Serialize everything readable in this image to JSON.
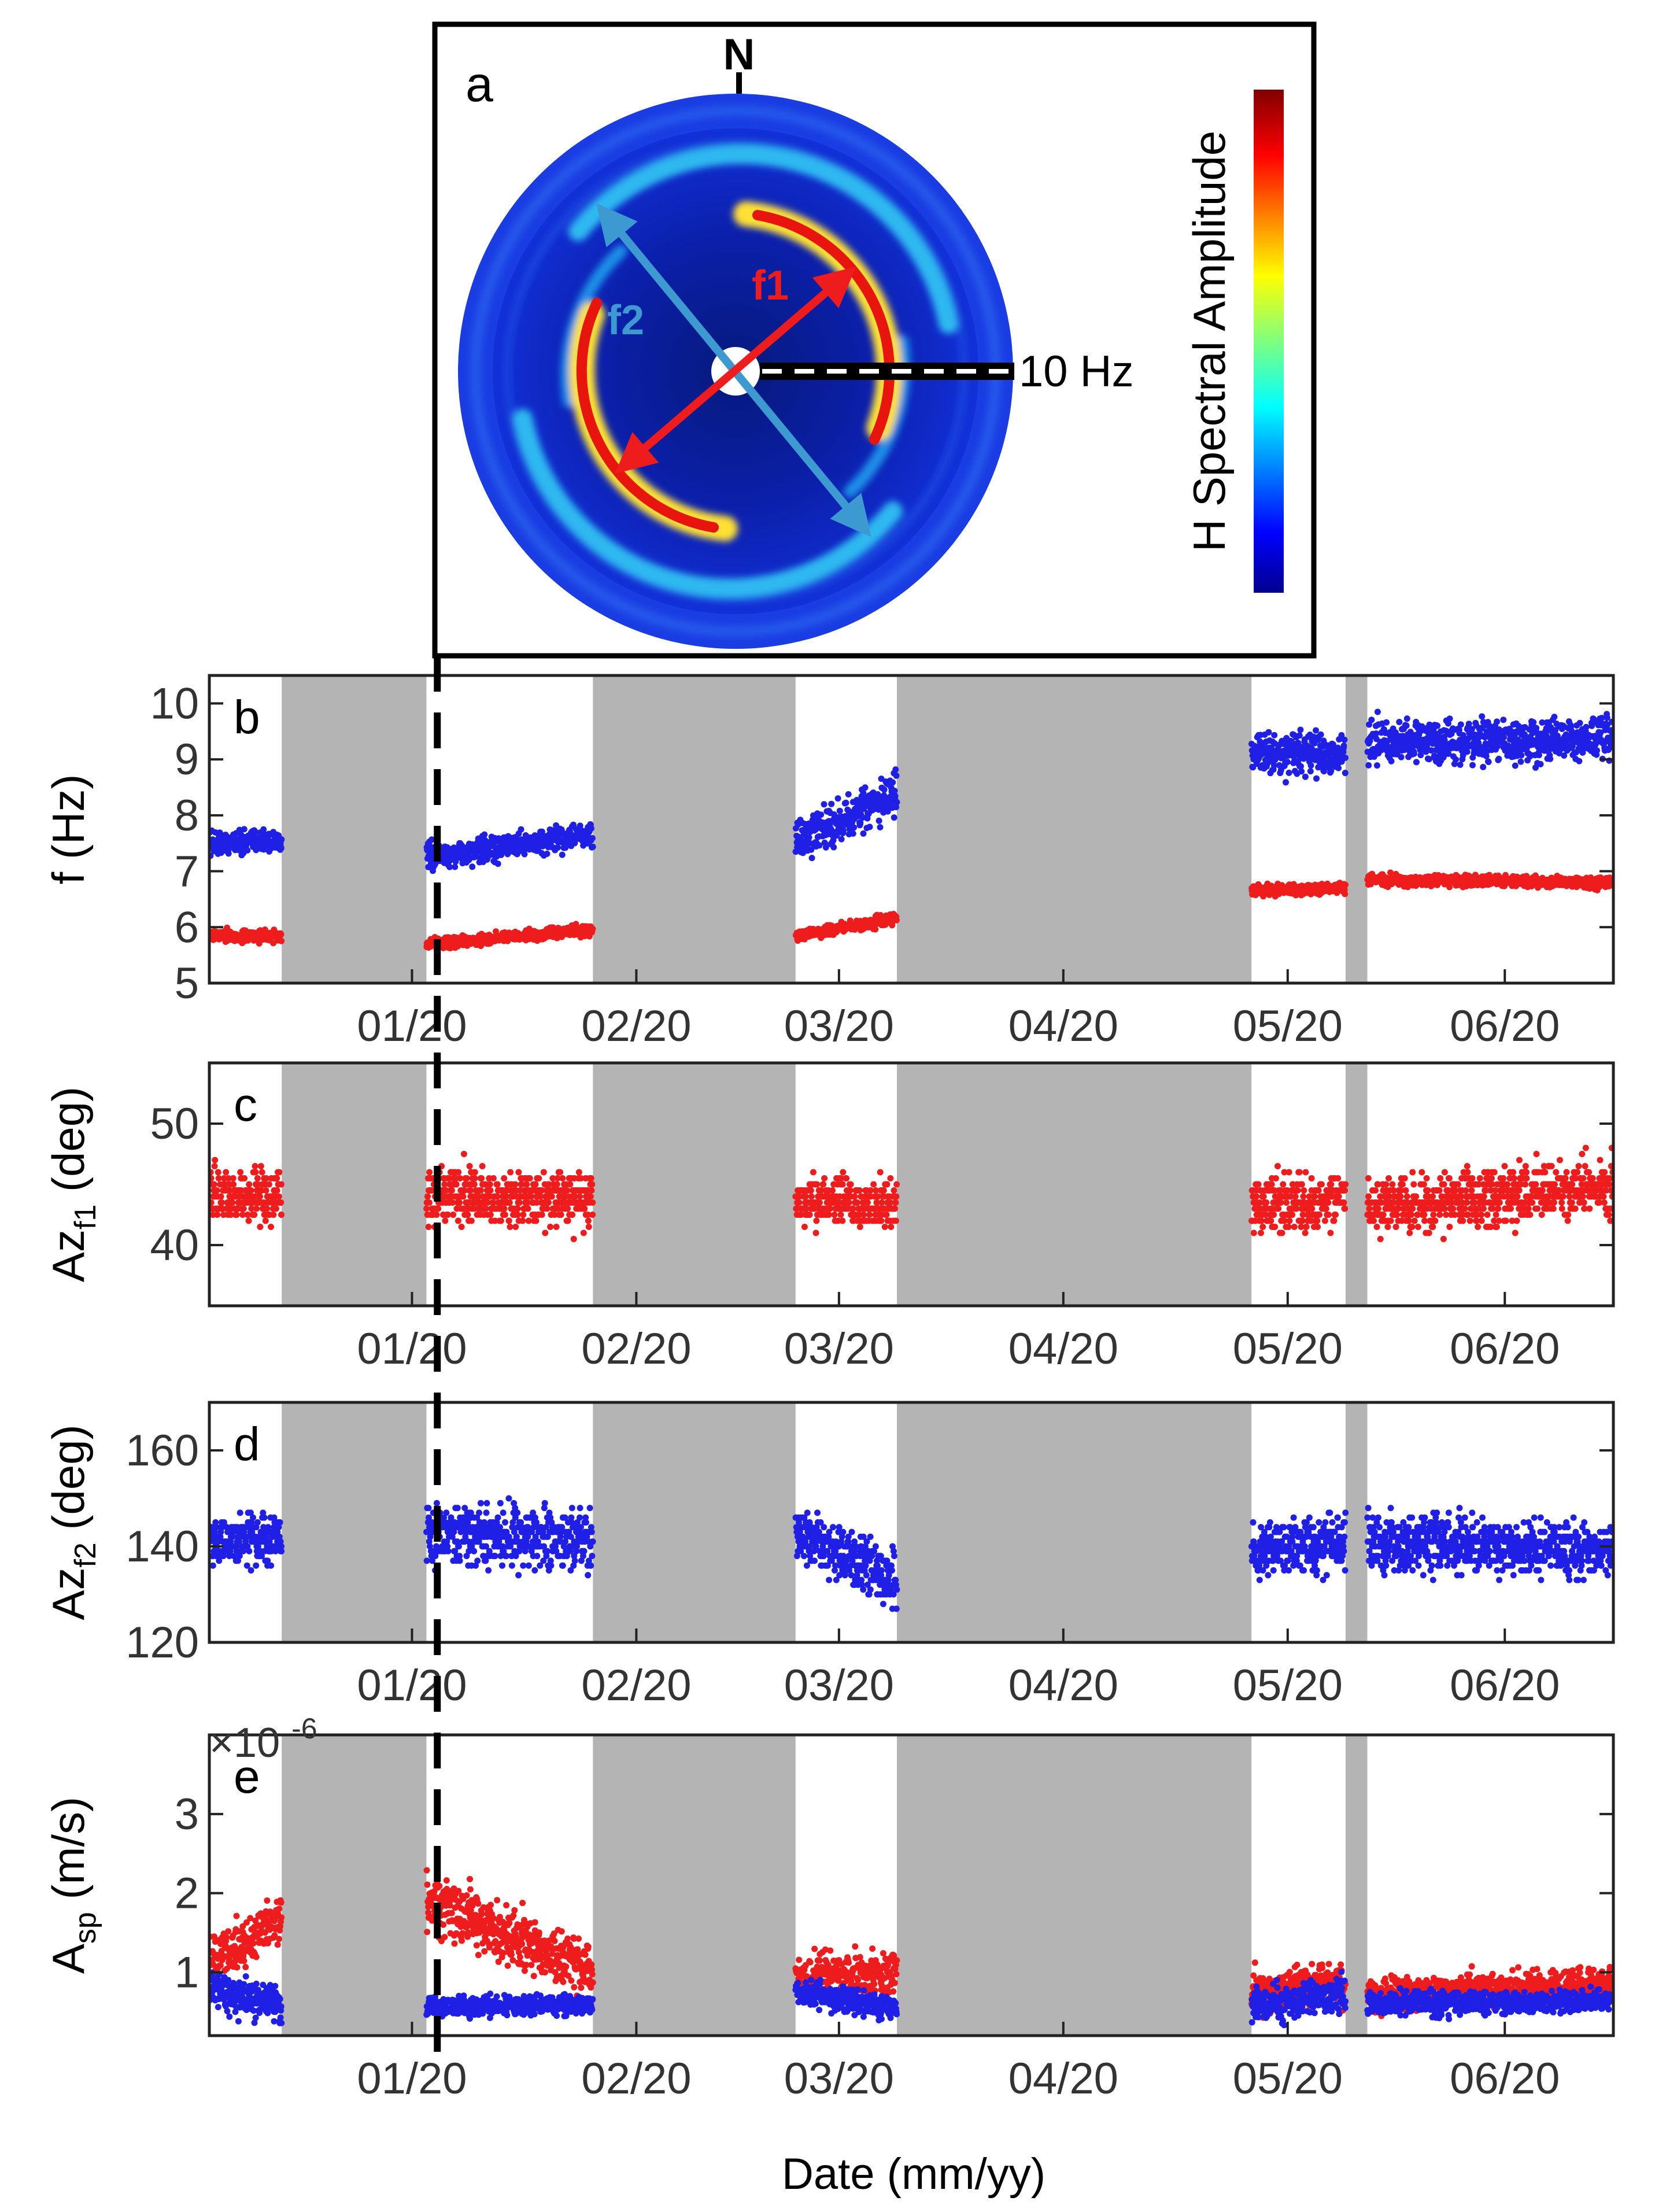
{
  "figure": {
    "x_axis_title": "Date (mm/yy)",
    "x_tick_labels": [
      "01/20",
      "02/20",
      "03/20",
      "04/20",
      "05/20",
      "06/20"
    ],
    "x_tick_days": [
      18,
      49,
      77,
      108,
      139,
      169
    ],
    "x_range_days": [
      -10,
      184
    ],
    "gray_gaps_days": [
      [
        0,
        20
      ],
      [
        43,
        71
      ],
      [
        85,
        134
      ],
      [
        147,
        150
      ]
    ],
    "dashed_marker_day": 21.5,
    "exponent_label": "×10",
    "exponent_power": "-6"
  },
  "panel_a": {
    "letter": "a",
    "north_label": "N",
    "scale_label": "10 Hz",
    "f1_label": "f1",
    "f2_label": "f2",
    "colorbar_label": "H Spectral Amplitude",
    "colors": {
      "f1": "#ee1c1c",
      "f2": "#3d9ad1",
      "disc": "#0e1fc8"
    }
  },
  "chart_data": [
    {
      "type": "scatter",
      "panel": "b",
      "ylabel": "f (Hz)",
      "ylim": [
        5,
        10.5
      ],
      "yticks": [
        5,
        6,
        7,
        8,
        9,
        10
      ],
      "series": [
        {
          "name": "f2",
          "color": "#1f1fe6",
          "segments": [
            {
              "start": -10,
              "end": 0,
              "base_start": 7.5,
              "base_end": 7.55,
              "noise": 0.18
            },
            {
              "start": 20,
              "end": 43,
              "base_start": 7.25,
              "base_end": 7.65,
              "noise": 0.18
            },
            {
              "start": 71,
              "end": 85,
              "base_start": 7.5,
              "base_end": 8.4,
              "noise": 0.28
            },
            {
              "start": 134,
              "end": 147,
              "base_start": 9.1,
              "base_end": 9.1,
              "noise": 0.28
            },
            {
              "start": 150,
              "end": 184,
              "base_start": 9.3,
              "base_end": 9.35,
              "noise": 0.3
            }
          ]
        },
        {
          "name": "f1",
          "color": "#ee1c1c",
          "segments": [
            {
              "start": -10,
              "end": 0,
              "base_start": 5.85,
              "base_end": 5.85,
              "noise": 0.08
            },
            {
              "start": 20,
              "end": 43,
              "base_start": 5.7,
              "base_end": 5.95,
              "noise": 0.08
            },
            {
              "start": 71,
              "end": 85,
              "base_start": 5.85,
              "base_end": 6.15,
              "noise": 0.08
            },
            {
              "start": 134,
              "end": 147,
              "base_start": 6.65,
              "base_end": 6.7,
              "noise": 0.08
            },
            {
              "start": 150,
              "end": 184,
              "base_start": 6.85,
              "base_end": 6.8,
              "noise": 0.08
            }
          ]
        }
      ]
    },
    {
      "type": "scatter",
      "panel": "c",
      "ylabel": "Az",
      "ylabel_sub": "f1",
      "ylabel_unit": "(deg)",
      "ylim": [
        35,
        55
      ],
      "yticks": [
        40,
        50
      ],
      "series": [
        {
          "name": "Az f1",
          "color": "#ee1c1c",
          "segments": [
            {
              "start": -10,
              "end": 0,
              "base_start": 44,
              "base_end": 44,
              "noise": 1.8
            },
            {
              "start": 20,
              "end": 43,
              "base_start": 44,
              "base_end": 44,
              "noise": 1.8
            },
            {
              "start": 71,
              "end": 85,
              "base_start": 43.5,
              "base_end": 43.5,
              "noise": 1.6
            },
            {
              "start": 134,
              "end": 147,
              "base_start": 43.5,
              "base_end": 43.5,
              "noise": 1.8
            },
            {
              "start": 150,
              "end": 184,
              "base_start": 43,
              "base_end": 45,
              "noise": 1.8
            }
          ]
        }
      ]
    },
    {
      "type": "scatter",
      "panel": "d",
      "ylabel": "Az",
      "ylabel_sub": "f2",
      "ylabel_unit": "(deg)",
      "ylim": [
        120,
        170
      ],
      "yticks": [
        120,
        140,
        160
      ],
      "series": [
        {
          "name": "Az f2",
          "color": "#1f1fe6",
          "segments": [
            {
              "start": -10,
              "end": 0,
              "base_start": 141,
              "base_end": 142,
              "noise": 4
            },
            {
              "start": 20,
              "end": 43,
              "base_start": 143,
              "base_end": 141,
              "noise": 5
            },
            {
              "start": 71,
              "end": 85,
              "base_start": 143,
              "base_end": 133,
              "noise": 5
            },
            {
              "start": 134,
              "end": 147,
              "base_start": 139,
              "base_end": 141,
              "noise": 5
            },
            {
              "start": 150,
              "end": 184,
              "base_start": 141,
              "base_end": 139,
              "noise": 4.5
            }
          ]
        }
      ]
    },
    {
      "type": "scatter",
      "panel": "e",
      "ylabel": "A",
      "ylabel_sub": "sp",
      "ylabel_unit": "(m/s)",
      "ylim": [
        0.2,
        4.0
      ],
      "yticks": [
        1,
        2,
        3
      ],
      "series": [
        {
          "name": "f1 amplitude",
          "color": "#ee1c1c",
          "segments": [
            {
              "start": -10,
              "end": 0,
              "base_start": 1.1,
              "base_end": 1.7,
              "noise": 0.25
            },
            {
              "start": 20,
              "end": 43,
              "base_start": 1.9,
              "base_end": 1.0,
              "noise": 0.3
            },
            {
              "start": 71,
              "end": 85,
              "base_start": 0.9,
              "base_end": 1.0,
              "noise": 0.22
            },
            {
              "start": 134,
              "end": 147,
              "base_start": 0.75,
              "base_end": 0.9,
              "noise": 0.2
            },
            {
              "start": 150,
              "end": 184,
              "base_start": 0.7,
              "base_end": 0.85,
              "noise": 0.18
            }
          ]
        },
        {
          "name": "f2 amplitude",
          "color": "#1f1fe6",
          "segments": [
            {
              "start": -10,
              "end": 0,
              "base_start": 0.8,
              "base_end": 0.6,
              "noise": 0.2
            },
            {
              "start": 20,
              "end": 43,
              "base_start": 0.55,
              "base_end": 0.6,
              "noise": 0.1
            },
            {
              "start": 71,
              "end": 85,
              "base_start": 0.75,
              "base_end": 0.55,
              "noise": 0.12
            },
            {
              "start": 134,
              "end": 147,
              "base_start": 0.6,
              "base_end": 0.7,
              "noise": 0.18
            },
            {
              "start": 150,
              "end": 184,
              "base_start": 0.6,
              "base_end": 0.65,
              "noise": 0.12
            }
          ]
        }
      ]
    }
  ]
}
